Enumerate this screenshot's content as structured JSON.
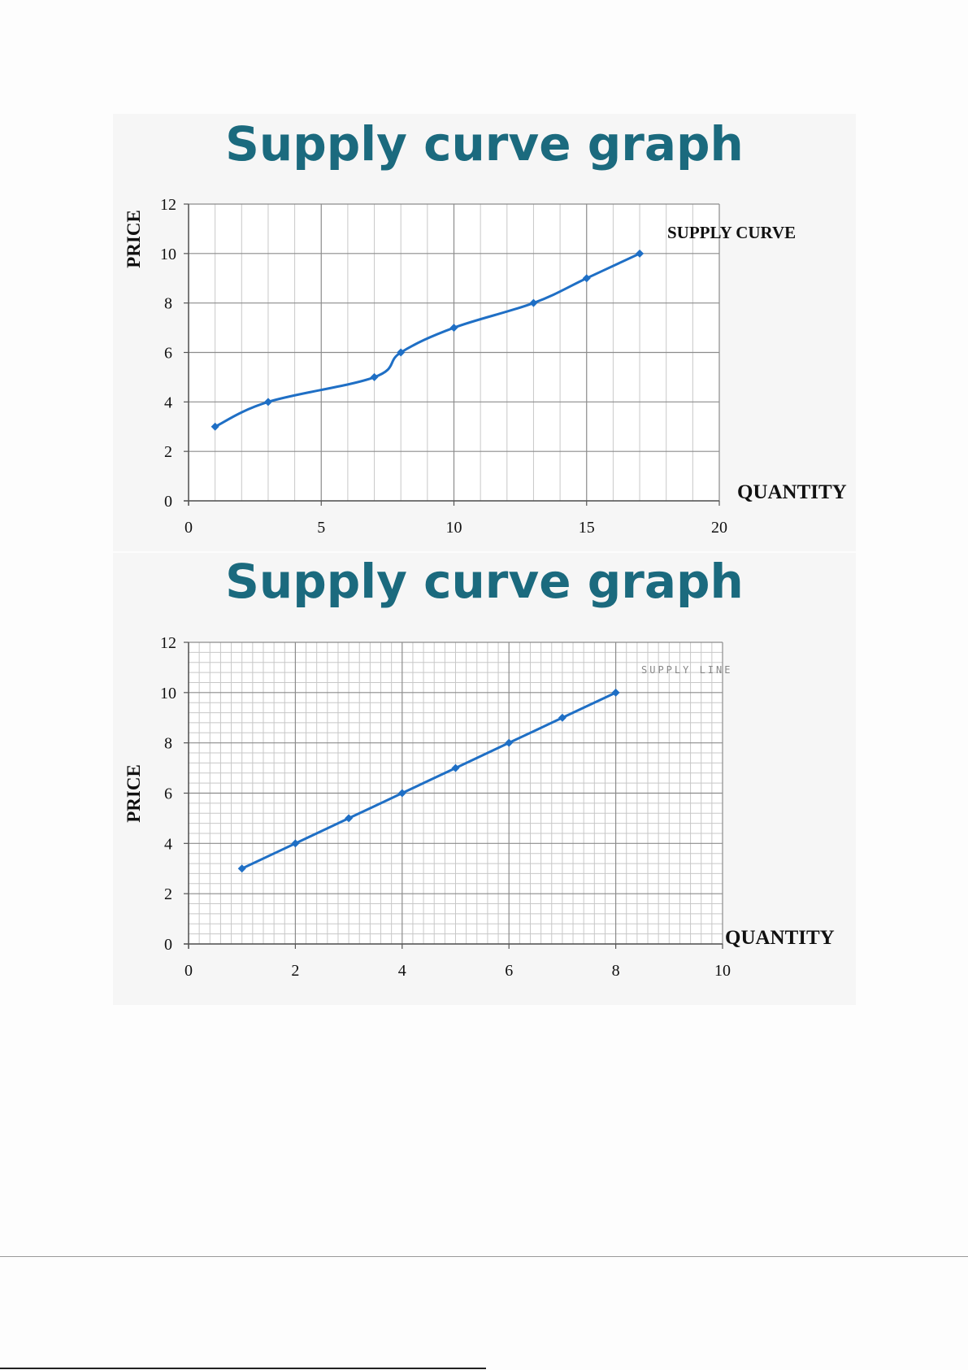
{
  "chart_data": [
    {
      "type": "line",
      "title": "Supply curve graph",
      "xlabel": "QUANTITY",
      "ylabel": "PRICE",
      "annotation": "SUPPLY CURVE",
      "xlim": [
        0,
        20
      ],
      "ylim": [
        0,
        12
      ],
      "x_ticks": [
        0,
        5,
        10,
        15,
        20
      ],
      "y_ticks": [
        0,
        2,
        4,
        6,
        8,
        10,
        12
      ],
      "x": [
        1,
        3,
        7,
        8,
        10,
        13,
        15,
        17
      ],
      "values": [
        3,
        4,
        5,
        6,
        7,
        8,
        9,
        10
      ],
      "grid": true,
      "color": "#1f6fc5"
    },
    {
      "type": "line",
      "title": "Supply curve graph",
      "xlabel": "QUANTITY",
      "ylabel": "PRICE",
      "annotation": "SUPPLY LINE",
      "xlim": [
        0,
        10
      ],
      "ylim": [
        0,
        12
      ],
      "x_ticks": [
        0,
        2,
        4,
        6,
        8,
        10
      ],
      "y_ticks": [
        0,
        2,
        4,
        6,
        8,
        10,
        12
      ],
      "x": [
        1,
        2,
        3,
        4,
        5,
        6,
        7,
        8
      ],
      "values": [
        3,
        4,
        5,
        6,
        7,
        8,
        9,
        10
      ],
      "grid": true,
      "color": "#1f6fc5"
    }
  ]
}
